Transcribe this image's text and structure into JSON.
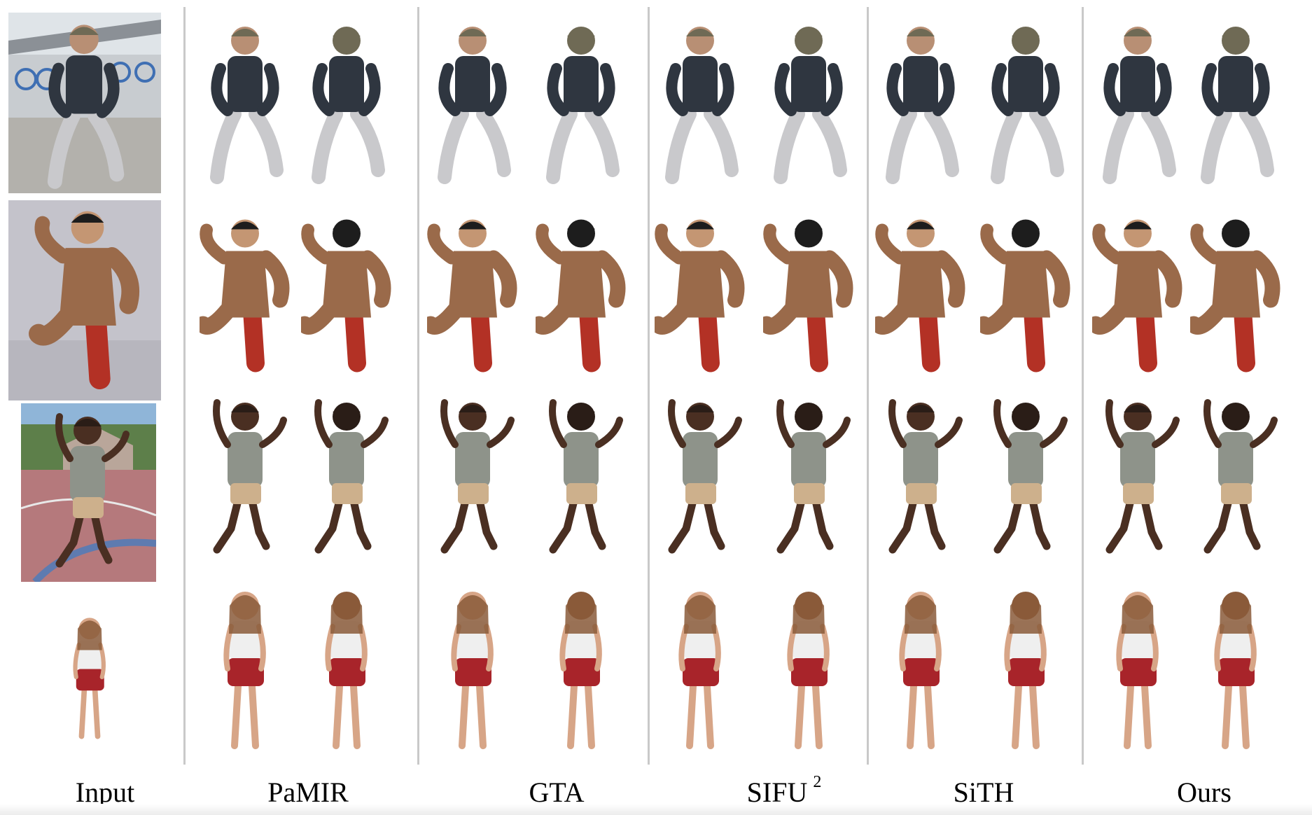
{
  "figure": {
    "columns": [
      {
        "label": "Input",
        "superscript": ""
      },
      {
        "label": "PaMIR",
        "superscript": ""
      },
      {
        "label": "GTA",
        "superscript": ""
      },
      {
        "label": "SIFU",
        "superscript": "2"
      },
      {
        "label": "SiTH",
        "superscript": ""
      },
      {
        "label": "Ours",
        "superscript": ""
      }
    ],
    "rows": [
      {
        "subject": "man-in-beanie",
        "top": "#2f3640",
        "bottom": "#c9c9cc",
        "skin": "#b88f74",
        "hat": "#6f6a55"
      },
      {
        "subject": "man-in-robe",
        "top": "#9a6a4a",
        "bottom": "#b33125",
        "skin": "#c49673",
        "hat": "#1d1d1d"
      },
      {
        "subject": "dancing-man",
        "top": "#8e938a",
        "bottom": "#cdb08c",
        "skin": "#4a2f22",
        "hat": "#2a1d17"
      },
      {
        "subject": "woman-in-shorts",
        "top": "#efefef",
        "bottom": "#a8242a",
        "skin": "#d7a587",
        "hat": "#8a5a3a"
      }
    ]
  }
}
